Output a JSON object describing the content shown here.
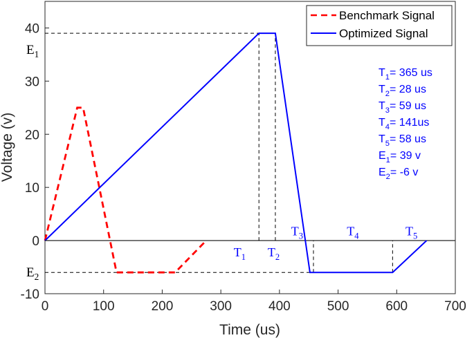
{
  "chart_data": {
    "type": "line",
    "xlabel": "Time (us)",
    "ylabel": "Voltage (v)",
    "xlim": [
      0,
      700
    ],
    "ylim": [
      -10,
      45
    ],
    "xticks": [
      0,
      100,
      200,
      300,
      400,
      500,
      600,
      700
    ],
    "yticks": [
      -10,
      0,
      10,
      20,
      30,
      40
    ],
    "grid": false,
    "legend_position": "top-right",
    "series": [
      {
        "name": "Benchmark Signal",
        "style": "dashed",
        "color": "#ff0000",
        "points": [
          [
            0,
            0
          ],
          [
            55,
            25
          ],
          [
            65,
            25
          ],
          [
            122,
            -6
          ],
          [
            222,
            -6
          ],
          [
            275,
            0
          ]
        ]
      },
      {
        "name": "Optimized Signal",
        "style": "solid",
        "color": "#0000ff",
        "points": [
          [
            0,
            0
          ],
          [
            365,
            39
          ],
          [
            393,
            39
          ],
          [
            452,
            -6
          ],
          [
            593,
            -6
          ],
          [
            651,
            0
          ]
        ]
      }
    ],
    "guide_lines": {
      "horizontal": [
        {
          "y": 39,
          "x_from": 0,
          "x_to": 365
        },
        {
          "y": -6,
          "x_from": 0,
          "x_to": 452
        }
      ],
      "vertical": [
        {
          "x": 365,
          "y_from": 0,
          "y_to": 39
        },
        {
          "x": 393,
          "y_from": 0,
          "y_to": 39
        },
        {
          "x": 458,
          "y_from": -6,
          "y_to": 0
        },
        {
          "x": 593,
          "y_from": -6,
          "y_to": 0
        }
      ]
    },
    "annotations": {
      "level_labels": [
        {
          "main": "E",
          "sub": "1",
          "y": 38.6
        },
        {
          "main": "E",
          "sub": "2",
          "y": -6
        }
      ],
      "segment_labels": [
        {
          "main": "T",
          "sub": "1",
          "x": 322,
          "y": -3
        },
        {
          "main": "T",
          "sub": "2",
          "x": 380,
          "y": -3
        },
        {
          "main": "T",
          "sub": "3",
          "x": 420,
          "y": 1
        },
        {
          "main": "T",
          "sub": "4",
          "x": 515,
          "y": 1
        },
        {
          "main": "T",
          "sub": "5",
          "x": 615,
          "y": 1
        }
      ],
      "parameters": [
        {
          "main": "T",
          "sub": "1",
          "value": "= 365 us"
        },
        {
          "main": "T",
          "sub": "2",
          "value": "= 28 us"
        },
        {
          "main": "T",
          "sub": "3",
          "value": "= 59 us"
        },
        {
          "main": "T",
          "sub": "4",
          "value": "= 141us"
        },
        {
          "main": "T",
          "sub": "5",
          "value": "= 58 us"
        },
        {
          "main": "E",
          "sub": "1",
          "value": "= 39 v"
        },
        {
          "main": "E",
          "sub": "2",
          "value": "= -6 v"
        }
      ]
    }
  }
}
